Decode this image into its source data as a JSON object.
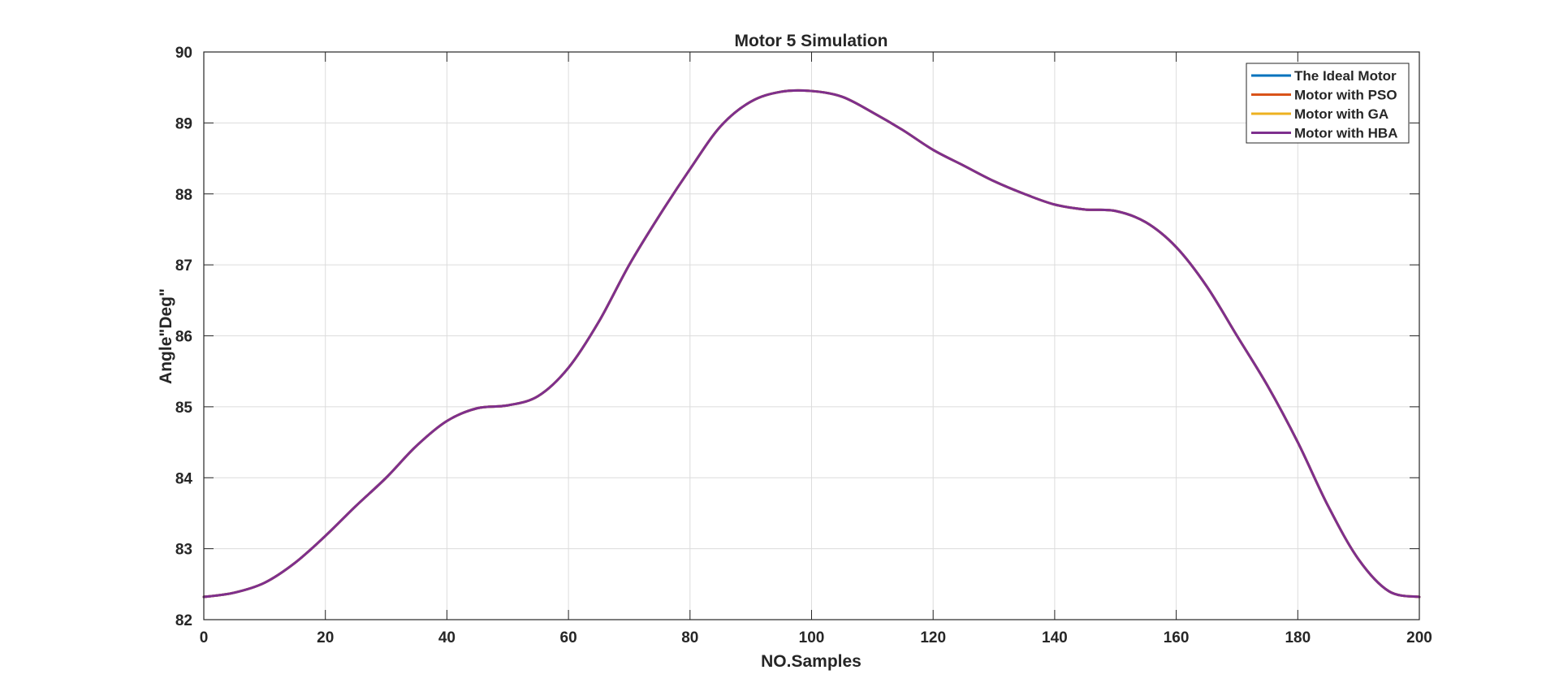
{
  "chart_data": {
    "type": "line",
    "title": "Motor 5 Simulation",
    "xlabel": "NO.Samples",
    "ylabel": "Angle\"Deg\"",
    "xlim": [
      0,
      200
    ],
    "ylim": [
      82,
      90
    ],
    "xticks": [
      0,
      20,
      40,
      60,
      80,
      100,
      120,
      140,
      160,
      180,
      200
    ],
    "yticks": [
      82,
      83,
      84,
      85,
      86,
      87,
      88,
      89,
      90
    ],
    "grid": true,
    "legend_position": "top-right",
    "series": [
      {
        "name": "The Ideal Motor",
        "color": "#0072BD",
        "x": [
          0,
          5,
          10,
          15,
          20,
          25,
          30,
          35,
          40,
          45,
          50,
          55,
          60,
          65,
          70,
          75,
          80,
          85,
          90,
          95,
          100,
          105,
          110,
          115,
          120,
          125,
          130,
          135,
          140,
          145,
          150,
          155,
          160,
          165,
          170,
          175,
          180,
          185,
          190,
          195,
          200
        ],
        "y": [
          82.32,
          82.38,
          82.52,
          82.8,
          83.18,
          83.6,
          84.0,
          84.45,
          84.8,
          84.98,
          85.02,
          85.15,
          85.55,
          86.2,
          87.0,
          87.7,
          88.35,
          88.95,
          89.3,
          89.44,
          89.45,
          89.37,
          89.15,
          88.9,
          88.62,
          88.4,
          88.18,
          88.0,
          87.85,
          87.78,
          87.76,
          87.6,
          87.25,
          86.7,
          86.0,
          85.3,
          84.5,
          83.6,
          82.85,
          82.4,
          82.32
        ]
      },
      {
        "name": "Motor with PSO",
        "color": "#D95319",
        "x": [
          0,
          5,
          10,
          15,
          20,
          25,
          30,
          35,
          40,
          45,
          50,
          55,
          60,
          65,
          70,
          75,
          80,
          85,
          90,
          95,
          100,
          105,
          110,
          115,
          120,
          125,
          130,
          135,
          140,
          145,
          150,
          155,
          160,
          165,
          170,
          175,
          180,
          185,
          190,
          195,
          200
        ],
        "y": [
          82.32,
          82.38,
          82.52,
          82.8,
          83.18,
          83.6,
          84.0,
          84.45,
          84.8,
          84.98,
          85.02,
          85.15,
          85.55,
          86.2,
          87.0,
          87.7,
          88.35,
          88.95,
          89.3,
          89.44,
          89.45,
          89.37,
          89.15,
          88.9,
          88.62,
          88.4,
          88.18,
          88.0,
          87.85,
          87.78,
          87.76,
          87.6,
          87.25,
          86.7,
          86.0,
          85.3,
          84.5,
          83.6,
          82.85,
          82.4,
          82.32
        ]
      },
      {
        "name": "Motor with GA",
        "color": "#EDB120",
        "x": [
          0,
          5,
          10,
          15,
          20,
          25,
          30,
          35,
          40,
          45,
          50,
          55,
          60,
          65,
          70,
          75,
          80,
          85,
          90,
          95,
          100,
          105,
          110,
          115,
          120,
          125,
          130,
          135,
          140,
          145,
          150,
          155,
          160,
          165,
          170,
          175,
          180,
          185,
          190,
          195,
          200
        ],
        "y": [
          82.32,
          82.38,
          82.52,
          82.8,
          83.18,
          83.6,
          84.0,
          84.45,
          84.8,
          84.98,
          85.02,
          85.15,
          85.55,
          86.2,
          87.0,
          87.7,
          88.35,
          88.95,
          89.3,
          89.44,
          89.45,
          89.37,
          89.15,
          88.9,
          88.62,
          88.4,
          88.18,
          88.0,
          87.85,
          87.78,
          87.76,
          87.6,
          87.25,
          86.7,
          86.0,
          85.3,
          84.5,
          83.6,
          82.85,
          82.4,
          82.32
        ]
      },
      {
        "name": "Motor with HBA",
        "color": "#7E2F8E",
        "x": [
          0,
          5,
          10,
          15,
          20,
          25,
          30,
          35,
          40,
          45,
          50,
          55,
          60,
          65,
          70,
          75,
          80,
          85,
          90,
          95,
          100,
          105,
          110,
          115,
          120,
          125,
          130,
          135,
          140,
          145,
          150,
          155,
          160,
          165,
          170,
          175,
          180,
          185,
          190,
          195,
          200
        ],
        "y": [
          82.32,
          82.38,
          82.52,
          82.8,
          83.18,
          83.6,
          84.0,
          84.45,
          84.8,
          84.98,
          85.02,
          85.15,
          85.55,
          86.2,
          87.0,
          87.7,
          88.35,
          88.95,
          89.3,
          89.44,
          89.45,
          89.37,
          89.15,
          88.9,
          88.62,
          88.4,
          88.18,
          88.0,
          87.85,
          87.78,
          87.76,
          87.6,
          87.25,
          86.7,
          86.0,
          85.3,
          84.5,
          83.6,
          82.85,
          82.4,
          82.32
        ]
      }
    ]
  }
}
